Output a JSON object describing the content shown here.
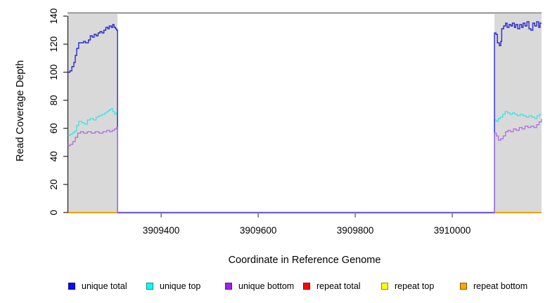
{
  "chart_data": {
    "type": "line",
    "title": "",
    "xlabel": "Coordinate in Reference Genome",
    "ylabel": "Read Coverage Depth",
    "xlim": [
      3909207,
      3910184
    ],
    "ylim": [
      0,
      140
    ],
    "x_ticks": [
      3909400,
      3909600,
      3909800,
      3910000
    ],
    "y_ticks": [
      0,
      20,
      40,
      60,
      80,
      100,
      120,
      140
    ],
    "grid": false,
    "legend_position": "bottom",
    "shaded_regions": [
      {
        "start": 3909208,
        "end": 3909310
      },
      {
        "start": 3910087,
        "end": 3910184
      }
    ],
    "series": [
      {
        "name": "repeat bottom",
        "color": "#FFA500",
        "width": 1.8,
        "shift": 0,
        "segments": [
          [
            [
              3909208,
              0
            ],
            [
              3909310,
              0
            ]
          ],
          [
            [
              3910087,
              0
            ],
            [
              3910184,
              0
            ]
          ]
        ]
      },
      {
        "name": "unique top",
        "color": "#3BE3E8",
        "width": 1.3,
        "shift": 0,
        "segments": [
          [
            [
              3909208,
              55
            ],
            [
              3909213,
              56
            ],
            [
              3909218,
              57
            ],
            [
              3909222,
              58
            ],
            [
              3909226,
              62
            ],
            [
              3909230,
              65
            ],
            [
              3909236,
              64
            ],
            [
              3909242,
              63
            ],
            [
              3909248,
              66
            ],
            [
              3909254,
              67
            ],
            [
              3909260,
              66
            ],
            [
              3909266,
              68
            ],
            [
              3909272,
              69
            ],
            [
              3909278,
              70
            ],
            [
              3909284,
              71
            ],
            [
              3909288,
              72
            ],
            [
              3909292,
              73
            ],
            [
              3909296,
              74
            ],
            [
              3909300,
              72
            ],
            [
              3909304,
              70
            ],
            [
              3909307,
              71
            ],
            [
              3909310,
              0
            ],
            [
              3910087,
              66
            ],
            [
              3910091,
              65
            ],
            [
              3910095,
              67
            ],
            [
              3910099,
              68
            ],
            [
              3910104,
              70
            ],
            [
              3910109,
              72
            ],
            [
              3910114,
              71
            ],
            [
              3910119,
              70
            ],
            [
              3910124,
              71
            ],
            [
              3910129,
              70
            ],
            [
              3910134,
              69
            ],
            [
              3910140,
              70
            ],
            [
              3910146,
              69
            ],
            [
              3910152,
              68
            ],
            [
              3910158,
              69
            ],
            [
              3910164,
              68
            ],
            [
              3910170,
              67
            ],
            [
              3910175,
              69
            ],
            [
              3910180,
              70
            ],
            [
              3910184,
              70
            ]
          ]
        ]
      },
      {
        "name": "unique total",
        "color": "#2929CE",
        "width": 1.4,
        "shift": 0,
        "segments": [
          [
            [
              3909208,
              100
            ],
            [
              3909212,
              101
            ],
            [
              3909216,
              104
            ],
            [
              3909220,
              107
            ],
            [
              3909223,
              112
            ],
            [
              3909226,
              117
            ],
            [
              3909230,
              121
            ],
            [
              3909240,
              122
            ],
            [
              3909244,
              121
            ],
            [
              3909250,
              123
            ],
            [
              3909254,
              126
            ],
            [
              3909258,
              125
            ],
            [
              3909262,
              127
            ],
            [
              3909266,
              126
            ],
            [
              3909270,
              128
            ],
            [
              3909274,
              129
            ],
            [
              3909278,
              128
            ],
            [
              3909282,
              130
            ],
            [
              3909286,
              132
            ],
            [
              3909290,
              131
            ],
            [
              3909293,
              133
            ],
            [
              3909297,
              132
            ],
            [
              3909300,
              134
            ],
            [
              3909303,
              132
            ],
            [
              3909306,
              131
            ],
            [
              3909308,
              130
            ],
            [
              3909310,
              0
            ],
            [
              3910087,
              128
            ],
            [
              3910090,
              127
            ],
            [
              3910093,
              121
            ],
            [
              3910097,
              119
            ],
            [
              3910100,
              122
            ],
            [
              3910102,
              131
            ],
            [
              3910106,
              133
            ],
            [
              3910110,
              135
            ],
            [
              3910113,
              132
            ],
            [
              3910117,
              134
            ],
            [
              3910121,
              133
            ],
            [
              3910124,
              135
            ],
            [
              3910128,
              132
            ],
            [
              3910131,
              134
            ],
            [
              3910135,
              131
            ],
            [
              3910139,
              134
            ],
            [
              3910143,
              132
            ],
            [
              3910146,
              135
            ],
            [
              3910150,
              133
            ],
            [
              3910154,
              136
            ],
            [
              3910158,
              131
            ],
            [
              3910162,
              130
            ],
            [
              3910166,
              135
            ],
            [
              3910170,
              133
            ],
            [
              3910174,
              136
            ],
            [
              3910178,
              132
            ],
            [
              3910181,
              135
            ],
            [
              3910184,
              135
            ]
          ]
        ]
      },
      {
        "name": "unique bottom",
        "color": "#B06FE3",
        "width": 1.3,
        "shift": 0.8,
        "segments": [
          [
            [
              3909208,
              48
            ],
            [
              3909213,
              49
            ],
            [
              3909218,
              51
            ],
            [
              3909223,
              54
            ],
            [
              3909228,
              57
            ],
            [
              3909234,
              58
            ],
            [
              3909240,
              57
            ],
            [
              3909248,
              58
            ],
            [
              3909256,
              57
            ],
            [
              3909264,
              58
            ],
            [
              3909272,
              57
            ],
            [
              3909280,
              58
            ],
            [
              3909288,
              59
            ],
            [
              3909294,
              58
            ],
            [
              3909299,
              59
            ],
            [
              3909304,
              60
            ],
            [
              3909308,
              61
            ],
            [
              3909310,
              0
            ],
            [
              3910087,
              57
            ],
            [
              3910091,
              55
            ],
            [
              3910095,
              52
            ],
            [
              3910100,
              53
            ],
            [
              3910105,
              55
            ],
            [
              3910110,
              58
            ],
            [
              3910115,
              59
            ],
            [
              3910120,
              58
            ],
            [
              3910126,
              60
            ],
            [
              3910132,
              59
            ],
            [
              3910138,
              61
            ],
            [
              3910144,
              60
            ],
            [
              3910150,
              62
            ],
            [
              3910156,
              61
            ],
            [
              3910162,
              62
            ],
            [
              3910168,
              61
            ],
            [
              3910174,
              63
            ],
            [
              3910179,
              65
            ],
            [
              3910184,
              67
            ]
          ]
        ]
      }
    ],
    "legend": [
      {
        "label": "unique total",
        "fill": "#0D0DF0",
        "border": "#00008B"
      },
      {
        "label": "unique top",
        "fill": "#00FFFF",
        "border": "#008B8B"
      },
      {
        "label": "unique bottom",
        "fill": "#A020F0",
        "border": "#551A8B"
      },
      {
        "label": "repeat total",
        "fill": "#FF0000",
        "border": "#8B0000"
      },
      {
        "label": "repeat top",
        "fill": "#FFFF00",
        "border": "#8B8B00"
      },
      {
        "label": "repeat bottom",
        "fill": "#FFA500",
        "border": "#8B5A00"
      }
    ],
    "colors": {
      "shaded_region": "#D9D9D9",
      "top_border": "#808080",
      "axis": "#222222",
      "x_tick": "#666666",
      "text": "#000000"
    }
  }
}
